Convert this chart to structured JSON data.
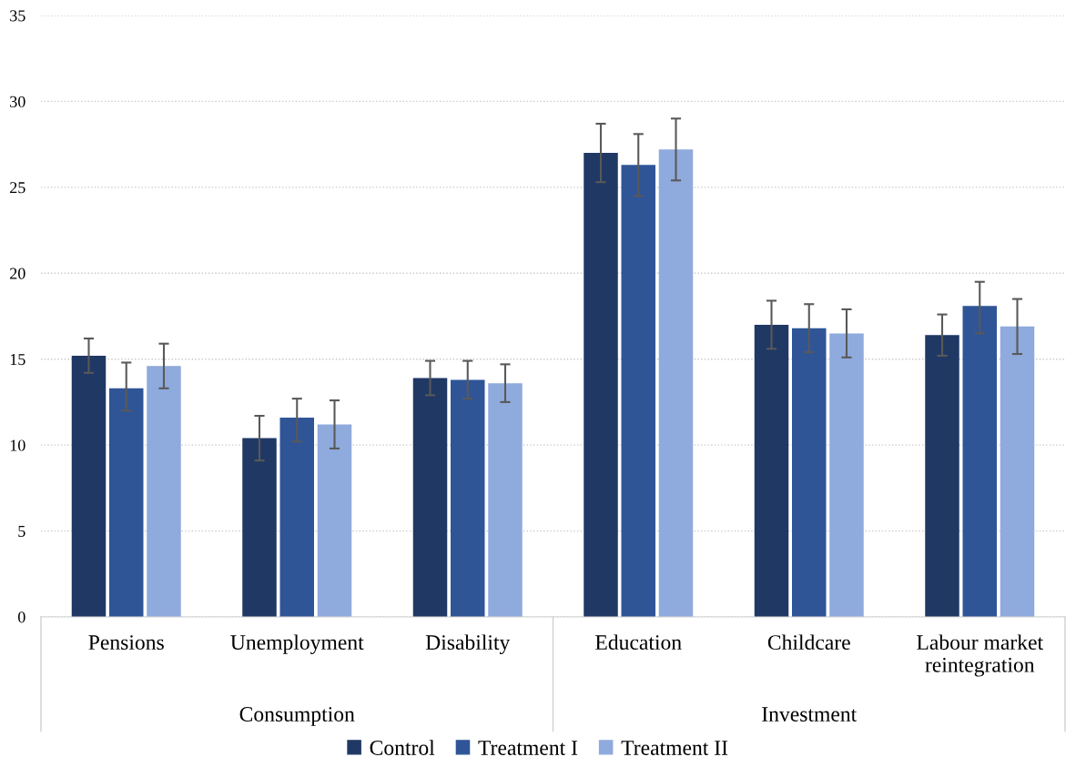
{
  "chart_data": {
    "type": "bar",
    "categories": [
      "Pensions",
      "Unemployment",
      "Disability",
      "Education",
      "Childcare",
      "Labour market\nreintegration"
    ],
    "series": [
      {
        "name": "Control",
        "color": "#203864",
        "values": [
          15.2,
          10.4,
          13.9,
          27.0,
          17.0,
          16.4
        ],
        "errors": [
          [
            14.2,
            16.2
          ],
          [
            9.1,
            11.7
          ],
          [
            12.9,
            14.9
          ],
          [
            25.3,
            28.7
          ],
          [
            15.6,
            18.4
          ],
          [
            15.2,
            17.6
          ]
        ]
      },
      {
        "name": "Treatment I",
        "color": "#2f5597",
        "values": [
          13.3,
          11.6,
          13.8,
          26.3,
          16.8,
          18.1
        ],
        "errors": [
          [
            12.0,
            14.8
          ],
          [
            10.2,
            12.7
          ],
          [
            12.7,
            14.9
          ],
          [
            24.5,
            28.1
          ],
          [
            15.4,
            18.2
          ],
          [
            16.5,
            19.5
          ]
        ]
      },
      {
        "name": "Treatment II",
        "color": "#8faadc",
        "values": [
          14.6,
          11.2,
          13.6,
          27.2,
          16.5,
          16.9
        ],
        "errors": [
          [
            13.3,
            15.9
          ],
          [
            9.8,
            12.6
          ],
          [
            12.5,
            14.7
          ],
          [
            25.4,
            29.0
          ],
          [
            15.1,
            17.9
          ],
          [
            15.3,
            18.5
          ]
        ]
      }
    ],
    "annotations": [
      "Consumption",
      "Investment"
    ],
    "ylim": [
      0,
      35
    ],
    "yticks": [
      0,
      5,
      10,
      15,
      20,
      25,
      30,
      35
    ],
    "grid": "y",
    "legend": "bottom"
  }
}
